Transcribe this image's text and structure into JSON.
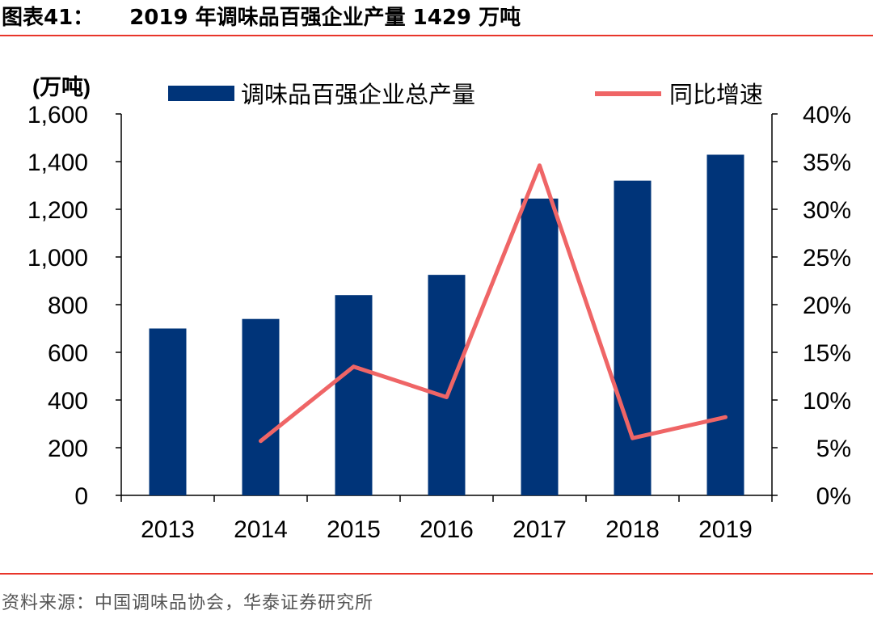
{
  "figure": {
    "label": "图表41：",
    "title": "2019 年调味品百强企业产量 1429 万吨",
    "source": "资料来源：中国调味品协会，华泰证券研究所"
  },
  "colors": {
    "bar": "#003479",
    "line": "#ef6566",
    "rule": "#e8352a"
  },
  "chart_data": {
    "type": "bar+line",
    "categories": [
      "2013",
      "2014",
      "2015",
      "2016",
      "2017",
      "2018",
      "2019"
    ],
    "series": [
      {
        "name": "调味品百强企业总产量",
        "type": "bar",
        "axis": "left",
        "values": [
          700,
          740,
          840,
          925,
          1245,
          1320,
          1429
        ]
      },
      {
        "name": "同比增速",
        "type": "line",
        "axis": "right",
        "values": [
          null,
          5.7,
          13.5,
          10.3,
          34.6,
          6.0,
          8.2
        ]
      }
    ],
    "left_axis": {
      "unit": "(万吨)",
      "range": [
        0,
        1600
      ],
      "ticks": [
        "0",
        "200",
        "400",
        "600",
        "800",
        "1,000",
        "1,200",
        "1,400",
        "1,600"
      ]
    },
    "right_axis": {
      "range": [
        0,
        40
      ],
      "ticks": [
        "0%",
        "5%",
        "10%",
        "15%",
        "20%",
        "25%",
        "30%",
        "35%",
        "40%"
      ]
    },
    "legend_position": "top"
  }
}
